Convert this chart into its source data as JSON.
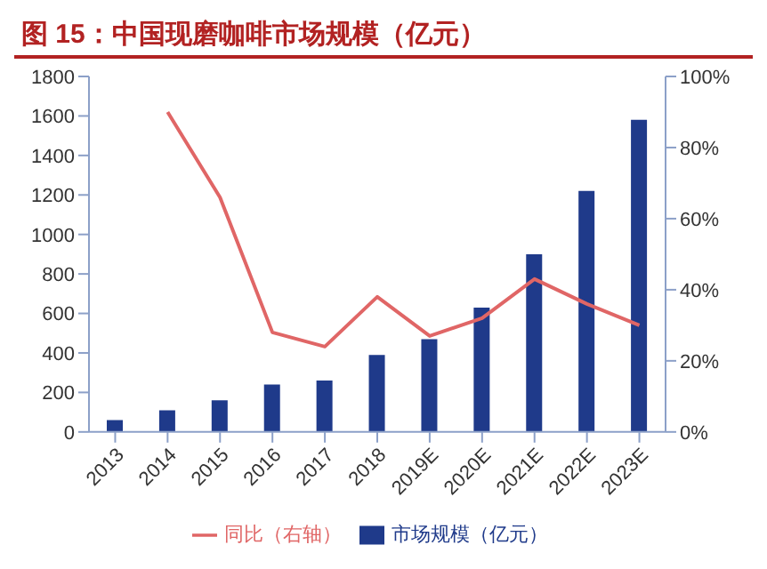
{
  "chart_data": {
    "type": "bar",
    "title": "图 15：中国现磨咖啡市场规模（亿元）",
    "categories": [
      "2013",
      "2014",
      "2015",
      "2016",
      "2017",
      "2018",
      "2019E",
      "2020E",
      "2021E",
      "2022E",
      "2023E"
    ],
    "series": [
      {
        "name": "市场规模（亿元）",
        "color": "#1f3a8a",
        "values": [
          60,
          110,
          160,
          240,
          260,
          390,
          470,
          630,
          900,
          1220,
          1580
        ]
      },
      {
        "name": "同比（右轴）",
        "type": "line",
        "axis": "y2",
        "color": "#e06666",
        "values": [
          null,
          90,
          66,
          28,
          24,
          38,
          27,
          32,
          43,
          36,
          30
        ]
      }
    ],
    "ylim": [
      0,
      1800
    ],
    "yticks": [
      0,
      200,
      400,
      600,
      800,
      1000,
      1200,
      1400,
      1600,
      1800
    ],
    "y2lim": [
      0,
      100
    ],
    "y2ticks": [
      {
        "value": 0,
        "label": "0%"
      },
      {
        "value": 20,
        "label": "20%"
      },
      {
        "value": 40,
        "label": "40%"
      },
      {
        "value": 60,
        "label": "60%"
      },
      {
        "value": 80,
        "label": "80%"
      },
      {
        "value": 100,
        "label": "100%"
      }
    ],
    "grid": false,
    "legend": "bottom",
    "marker": "none"
  }
}
